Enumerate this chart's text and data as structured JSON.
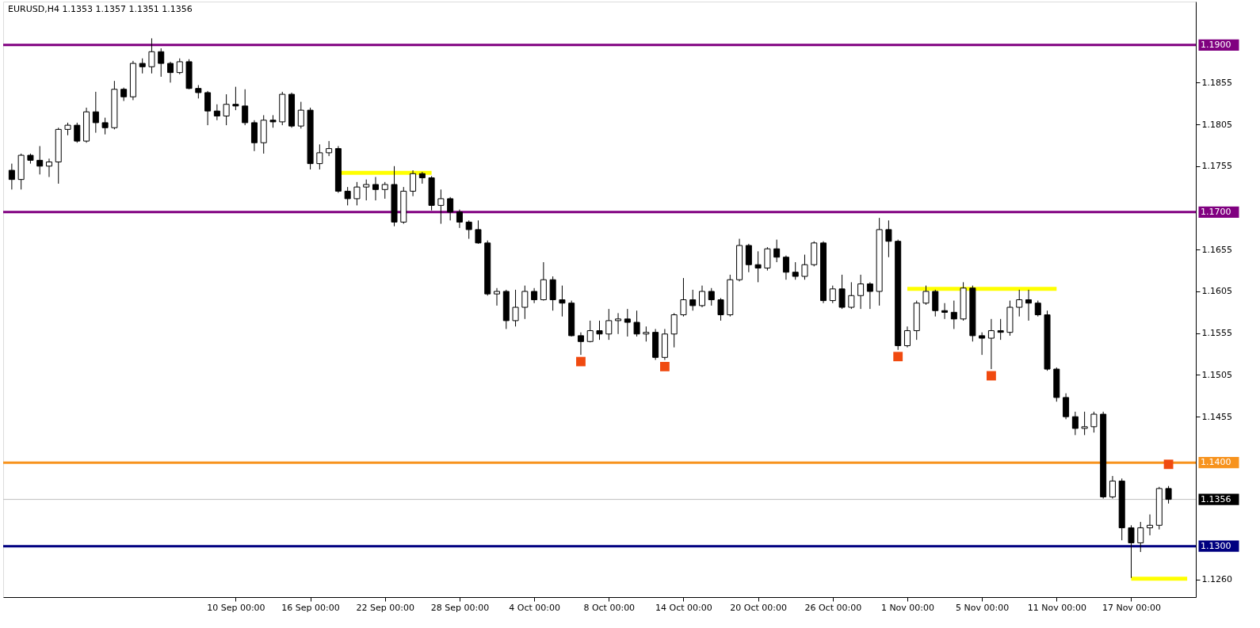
{
  "chart_data": {
    "type": "candlestick",
    "title": "EURUSD,H4  1.1353 1.1357 1.1351 1.1356",
    "color": "#000000",
    "categories": [
      null,
      null,
      null,
      null,
      null,
      null,
      null,
      null,
      null,
      null,
      null,
      null,
      null,
      null,
      null,
      null,
      null,
      null,
      null,
      null,
      null,
      null,
      null,
      null,
      "10 Sep 00:00",
      null,
      null,
      null,
      null,
      null,
      null,
      null,
      "16 Sep 00:00",
      null,
      null,
      null,
      null,
      null,
      null,
      null,
      "22 Sep 00:00",
      null,
      null,
      null,
      null,
      null,
      null,
      null,
      "28 Sep 00:00",
      null,
      null,
      null,
      null,
      null,
      null,
      null,
      "4 Oct 00:00",
      null,
      null,
      null,
      null,
      null,
      null,
      null,
      "8 Oct 00:00",
      null,
      null,
      null,
      null,
      null,
      null,
      null,
      "14 Oct 00:00",
      null,
      null,
      null,
      null,
      null,
      null,
      null,
      "20 Oct 00:00",
      null,
      null,
      null,
      null,
      null,
      null,
      null,
      "26 Oct 00:00",
      null,
      null,
      null,
      null,
      null,
      null,
      null,
      "1 Nov 00:00",
      null,
      null,
      null,
      null,
      null,
      null,
      null,
      "5 Nov 00:00",
      null,
      null,
      null,
      null,
      null,
      null,
      null,
      "11 Nov 00:00",
      null,
      null,
      null,
      null,
      null,
      null,
      null,
      "17 Nov 00:00",
      null,
      null,
      null,
      null,
      null,
      null
    ],
    "ohlc": [
      [
        1.175,
        1.1758,
        1.1727,
        1.1739
      ],
      [
        1.1739,
        1.177,
        1.1727,
        1.1768
      ],
      [
        1.1768,
        1.177,
        1.1758,
        1.1762
      ],
      [
        1.1762,
        1.1779,
        1.1745,
        1.1755
      ],
      [
        1.1755,
        1.1764,
        1.1742,
        1.176
      ],
      [
        1.176,
        1.1801,
        1.1734,
        1.1799
      ],
      [
        1.1799,
        1.1807,
        1.1792,
        1.1804
      ],
      [
        1.1804,
        1.1807,
        1.1783,
        1.1785
      ],
      [
        1.1785,
        1.1825,
        1.1783,
        1.182
      ],
      [
        1.182,
        1.1844,
        1.1795,
        1.1807
      ],
      [
        1.1807,
        1.1813,
        1.1793,
        1.1801
      ],
      [
        1.1801,
        1.1857,
        1.1799,
        1.1847
      ],
      [
        1.1847,
        1.1849,
        1.1833,
        1.1838
      ],
      [
        1.1838,
        1.1881,
        1.1834,
        1.1878
      ],
      [
        1.1878,
        1.1884,
        1.1866,
        1.1874
      ],
      [
        1.1874,
        1.1908,
        1.1866,
        1.1892
      ],
      [
        1.1892,
        1.1896,
        1.1862,
        1.1878
      ],
      [
        1.1878,
        1.188,
        1.1855,
        1.1867
      ],
      [
        1.1867,
        1.1884,
        1.1865,
        1.188
      ],
      [
        1.188,
        1.1883,
        1.1847,
        1.1848
      ],
      [
        1.1848,
        1.1852,
        1.1836,
        1.1843
      ],
      [
        1.1843,
        1.1845,
        1.1804,
        1.1821
      ],
      [
        1.1821,
        1.1829,
        1.181,
        1.1815
      ],
      [
        1.1815,
        1.1841,
        1.1804,
        1.1829
      ],
      [
        1.1829,
        1.185,
        1.1822,
        1.1827
      ],
      [
        1.1827,
        1.1847,
        1.1804,
        1.1807
      ],
      [
        1.1807,
        1.181,
        1.1773,
        1.1783
      ],
      [
        1.1783,
        1.1816,
        1.177,
        1.181
      ],
      [
        1.181,
        1.1816,
        1.1801,
        1.1808
      ],
      [
        1.1808,
        1.1844,
        1.1804,
        1.1841
      ],
      [
        1.1841,
        1.1843,
        1.1801,
        1.1803
      ],
      [
        1.1803,
        1.1832,
        1.18,
        1.1822
      ],
      [
        1.1822,
        1.1825,
        1.1751,
        1.1758
      ],
      [
        1.1758,
        1.1781,
        1.1751,
        1.1771
      ],
      [
        1.1771,
        1.1785,
        1.1767,
        1.1776
      ],
      [
        1.1776,
        1.1779,
        1.1723,
        1.1725
      ],
      [
        1.1725,
        1.173,
        1.1708,
        1.1716
      ],
      [
        1.1716,
        1.1736,
        1.1708,
        1.173
      ],
      [
        1.173,
        1.1739,
        1.1714,
        1.1733
      ],
      [
        1.1733,
        1.1742,
        1.1714,
        1.1727
      ],
      [
        1.1727,
        1.1736,
        1.1716,
        1.1733
      ],
      [
        1.1733,
        1.1755,
        1.1683,
        1.1688
      ],
      [
        1.1688,
        1.173,
        1.1686,
        1.1725
      ],
      [
        1.1725,
        1.175,
        1.1719,
        1.1746
      ],
      [
        1.1746,
        1.1748,
        1.1734,
        1.1741
      ],
      [
        1.1741,
        1.1743,
        1.1702,
        1.1708
      ],
      [
        1.1708,
        1.1727,
        1.1686,
        1.1716
      ],
      [
        1.1716,
        1.1718,
        1.169,
        1.17
      ],
      [
        1.17,
        1.1703,
        1.1681,
        1.1688
      ],
      [
        1.1688,
        1.169,
        1.1668,
        1.1679
      ],
      [
        1.1679,
        1.169,
        1.1662,
        1.1663
      ],
      [
        1.1663,
        1.1666,
        1.16,
        1.1602
      ],
      [
        1.1602,
        1.1609,
        1.1588,
        1.1605
      ],
      [
        1.1605,
        1.1607,
        1.156,
        1.157
      ],
      [
        1.157,
        1.1607,
        1.1563,
        1.1586
      ],
      [
        1.1586,
        1.1612,
        1.1572,
        1.1605
      ],
      [
        1.1605,
        1.1609,
        1.1591,
        1.1595
      ],
      [
        1.1595,
        1.164,
        1.1594,
        1.1619
      ],
      [
        1.1619,
        1.1623,
        1.1582,
        1.1595
      ],
      [
        1.1595,
        1.1612,
        1.1575,
        1.1591
      ],
      [
        1.1591,
        1.1594,
        1.1551,
        1.1552
      ],
      [
        1.1552,
        1.1556,
        1.1529,
        1.1545
      ],
      [
        1.1545,
        1.157,
        1.1544,
        1.1558
      ],
      [
        1.1558,
        1.157,
        1.1547,
        1.1554
      ],
      [
        1.1554,
        1.1584,
        1.1547,
        1.157
      ],
      [
        1.157,
        1.1579,
        1.1554,
        1.1572
      ],
      [
        1.1572,
        1.1584,
        1.1551,
        1.1568
      ],
      [
        1.1568,
        1.1582,
        1.1551,
        1.1554
      ],
      [
        1.1554,
        1.1563,
        1.1545,
        1.1556
      ],
      [
        1.1556,
        1.156,
        1.1523,
        1.1526
      ],
      [
        1.1526,
        1.156,
        1.1523,
        1.1554
      ],
      [
        1.1554,
        1.1579,
        1.1538,
        1.1577
      ],
      [
        1.1577,
        1.1621,
        1.1575,
        1.1595
      ],
      [
        1.1595,
        1.1607,
        1.1582,
        1.1588
      ],
      [
        1.1588,
        1.1612,
        1.1586,
        1.1605
      ],
      [
        1.1605,
        1.1609,
        1.1588,
        1.1595
      ],
      [
        1.1595,
        1.1597,
        1.157,
        1.1577
      ],
      [
        1.1577,
        1.1625,
        1.1575,
        1.1619
      ],
      [
        1.1619,
        1.1668,
        1.1617,
        1.166
      ],
      [
        1.166,
        1.1662,
        1.1628,
        1.1637
      ],
      [
        1.1637,
        1.1653,
        1.1616,
        1.1633
      ],
      [
        1.1633,
        1.1658,
        1.163,
        1.1656
      ],
      [
        1.1656,
        1.1667,
        1.164,
        1.1646
      ],
      [
        1.1646,
        1.1648,
        1.1619,
        1.1628
      ],
      [
        1.1628,
        1.164,
        1.1619,
        1.1623
      ],
      [
        1.1623,
        1.1649,
        1.1619,
        1.1637
      ],
      [
        1.1637,
        1.1665,
        1.1635,
        1.1663
      ],
      [
        1.1663,
        1.1665,
        1.1591,
        1.1594
      ],
      [
        1.1594,
        1.1612,
        1.1591,
        1.1608
      ],
      [
        1.1608,
        1.1625,
        1.1584,
        1.1586
      ],
      [
        1.1586,
        1.1616,
        1.1584,
        1.16
      ],
      [
        1.16,
        1.1625,
        1.1584,
        1.1614
      ],
      [
        1.1614,
        1.1616,
        1.1584,
        1.1605
      ],
      [
        1.1605,
        1.1693,
        1.1588,
        1.1679
      ],
      [
        1.1679,
        1.169,
        1.1646,
        1.1665
      ],
      [
        1.1665,
        1.1667,
        1.1535,
        1.154
      ],
      [
        1.154,
        1.1563,
        1.1538,
        1.1558
      ],
      [
        1.1558,
        1.1594,
        1.1547,
        1.1591
      ],
      [
        1.1591,
        1.1612,
        1.1589,
        1.1605
      ],
      [
        1.1605,
        1.1607,
        1.1575,
        1.1582
      ],
      [
        1.1582,
        1.1591,
        1.1572,
        1.158
      ],
      [
        1.158,
        1.1594,
        1.156,
        1.1572
      ],
      [
        1.1572,
        1.1616,
        1.157,
        1.1609
      ],
      [
        1.1609,
        1.1612,
        1.1545,
        1.1552
      ],
      [
        1.1552,
        1.1556,
        1.1529,
        1.1549
      ],
      [
        1.1549,
        1.1572,
        1.1512,
        1.1558
      ],
      [
        1.1558,
        1.1572,
        1.1547,
        1.1556
      ],
      [
        1.1556,
        1.1594,
        1.1552,
        1.1586
      ],
      [
        1.1586,
        1.1607,
        1.1575,
        1.1595
      ],
      [
        1.1595,
        1.1607,
        1.157,
        1.1591
      ],
      [
        1.1591,
        1.1594,
        1.1575,
        1.1577
      ],
      [
        1.1577,
        1.1582,
        1.151,
        1.1512
      ],
      [
        1.1512,
        1.1514,
        1.1473,
        1.1478
      ],
      [
        1.1478,
        1.1483,
        1.1452,
        1.1455
      ],
      [
        1.1455,
        1.1461,
        1.1433,
        1.1441
      ],
      [
        1.1441,
        1.1461,
        1.1433,
        1.1443
      ],
      [
        1.1443,
        1.1461,
        1.1436,
        1.1458
      ],
      [
        1.1458,
        1.1461,
        1.1357,
        1.1359
      ],
      [
        1.1359,
        1.1384,
        1.1357,
        1.1378
      ],
      [
        1.1378,
        1.1381,
        1.1307,
        1.1322
      ],
      [
        1.1322,
        1.1325,
        1.1262,
        1.1304
      ],
      [
        1.1304,
        1.1329,
        1.1293,
        1.1322
      ],
      [
        1.1322,
        1.1338,
        1.1313,
        1.1325
      ],
      [
        1.1325,
        1.1371,
        1.132,
        1.1369
      ],
      [
        1.1369,
        1.1372,
        1.1351,
        1.1356
      ],
      null,
      null
    ],
    "ylim": [
      1.1239,
      1.1952
    ],
    "yticks": [
      {
        "value": 1.126,
        "label": "1.1260"
      },
      1.1455,
      1.1505,
      1.1555,
      1.1605,
      1.1655,
      1.1755,
      1.1805,
      1.1855
    ],
    "grid": false,
    "ref_lines": [
      {
        "axis": "y",
        "value": 1.19,
        "label": "1.1900",
        "color": "#800080"
      },
      {
        "axis": "y",
        "value": 1.17,
        "label": "1.1700",
        "color": "#800080"
      },
      {
        "axis": "y",
        "value": 1.14,
        "label": "1.1400",
        "color": "#f7931e"
      },
      {
        "axis": "y",
        "value": 1.1356,
        "label": "1.1356",
        "color": "#c0c0c0"
      },
      {
        "axis": "y",
        "value": 1.13,
        "label": "1.1300",
        "color": "#000080"
      }
    ],
    "series": [
      {
        "type": "line",
        "color": "#ffff00",
        "values": [
          null,
          null,
          null,
          null,
          null,
          null,
          null,
          null,
          null,
          null,
          null,
          null,
          null,
          null,
          null,
          null,
          null,
          null,
          null,
          null,
          null,
          null,
          null,
          null,
          null,
          null,
          null,
          null,
          null,
          null,
          null,
          null,
          null,
          null,
          null,
          1.1747,
          1.1747,
          1.1747,
          1.1747,
          1.1747,
          1.1747,
          1.1747,
          1.1747,
          1.1747,
          1.1747,
          1.1747,
          null,
          null,
          null,
          null,
          null,
          null,
          null,
          null,
          null,
          null,
          null,
          null,
          null,
          null,
          null,
          null,
          null,
          null,
          null,
          null,
          null,
          null,
          null,
          null,
          null,
          null,
          null,
          null,
          null,
          null,
          null,
          null,
          null,
          null,
          null,
          null,
          null,
          null,
          null,
          null,
          null,
          null,
          null,
          null,
          null,
          null,
          null,
          null,
          null,
          null,
          null,
          null,
          null,
          null,
          null,
          null,
          null,
          null,
          null,
          null,
          null,
          null,
          null,
          null,
          null,
          null,
          null,
          null,
          null,
          null,
          null,
          null,
          null,
          null,
          null,
          null,
          null,
          null,
          null,
          null,
          null
        ]
      },
      {
        "type": "line",
        "color": "#ffff00",
        "values": [
          null,
          null,
          null,
          null,
          null,
          null,
          null,
          null,
          null,
          null,
          null,
          null,
          null,
          null,
          null,
          null,
          null,
          null,
          null,
          null,
          null,
          null,
          null,
          null,
          null,
          null,
          null,
          null,
          null,
          null,
          null,
          null,
          null,
          null,
          null,
          null,
          null,
          null,
          null,
          null,
          null,
          null,
          null,
          null,
          null,
          null,
          null,
          null,
          null,
          null,
          null,
          null,
          null,
          null,
          null,
          null,
          null,
          null,
          null,
          null,
          null,
          null,
          null,
          null,
          null,
          null,
          null,
          null,
          null,
          null,
          null,
          null,
          null,
          null,
          null,
          null,
          null,
          null,
          null,
          null,
          null,
          null,
          null,
          null,
          null,
          null,
          null,
          null,
          null,
          null,
          null,
          null,
          null,
          null,
          null,
          null,
          1.1608,
          1.1608,
          1.1608,
          1.1608,
          1.1608,
          1.1608,
          1.1608,
          1.1608,
          1.1608,
          1.1608,
          1.1608,
          1.1608,
          1.1608,
          1.1608,
          1.1608,
          1.1608,
          1.1608,
          null,
          null,
          null,
          null,
          null,
          null,
          null,
          null,
          null,
          null,
          null,
          null,
          null,
          null
        ]
      },
      {
        "type": "line",
        "color": "#ffff00",
        "values": [
          null,
          null,
          null,
          null,
          null,
          null,
          null,
          null,
          null,
          null,
          null,
          null,
          null,
          null,
          null,
          null,
          null,
          null,
          null,
          null,
          null,
          null,
          null,
          null,
          null,
          null,
          null,
          null,
          null,
          null,
          null,
          null,
          null,
          null,
          null,
          null,
          null,
          null,
          null,
          null,
          null,
          null,
          null,
          null,
          null,
          null,
          null,
          null,
          null,
          null,
          null,
          null,
          null,
          null,
          null,
          null,
          null,
          null,
          null,
          null,
          null,
          null,
          null,
          null,
          null,
          null,
          null,
          null,
          null,
          null,
          null,
          null,
          null,
          null,
          null,
          null,
          null,
          null,
          null,
          null,
          null,
          null,
          null,
          null,
          null,
          null,
          null,
          null,
          null,
          null,
          null,
          null,
          null,
          null,
          null,
          null,
          null,
          null,
          null,
          null,
          null,
          null,
          null,
          null,
          null,
          null,
          null,
          null,
          null,
          null,
          null,
          null,
          null,
          null,
          null,
          null,
          null,
          null,
          null,
          null,
          1.1261,
          1.1261,
          1.1261,
          1.1261,
          1.1261,
          1.1261,
          1.1261
        ]
      },
      {
        "type": "scatter",
        "marker": "square",
        "color": "#f04a10",
        "values": [
          null,
          null,
          null,
          null,
          null,
          null,
          null,
          null,
          null,
          null,
          null,
          null,
          null,
          null,
          null,
          null,
          null,
          null,
          null,
          null,
          null,
          null,
          null,
          null,
          null,
          null,
          null,
          null,
          null,
          null,
          null,
          null,
          null,
          null,
          null,
          null,
          null,
          null,
          null,
          null,
          null,
          null,
          null,
          null,
          null,
          null,
          null,
          null,
          null,
          null,
          null,
          null,
          null,
          null,
          null,
          null,
          null,
          null,
          null,
          null,
          null,
          1.1521,
          null,
          null,
          null,
          null,
          null,
          null,
          null,
          null,
          1.1515,
          null,
          null,
          null,
          null,
          null,
          null,
          null,
          null,
          null,
          null,
          null,
          null,
          null,
          null,
          null,
          null,
          null,
          null,
          null,
          null,
          null,
          null,
          null,
          null,
          1.1527,
          null,
          null,
          null,
          null,
          null,
          null,
          null,
          null,
          null,
          1.1504,
          null,
          null,
          null,
          null,
          null,
          null,
          null,
          null,
          null,
          null,
          null,
          null,
          null,
          null,
          null,
          null,
          null,
          null,
          1.1398,
          null,
          null
        ]
      }
    ]
  }
}
